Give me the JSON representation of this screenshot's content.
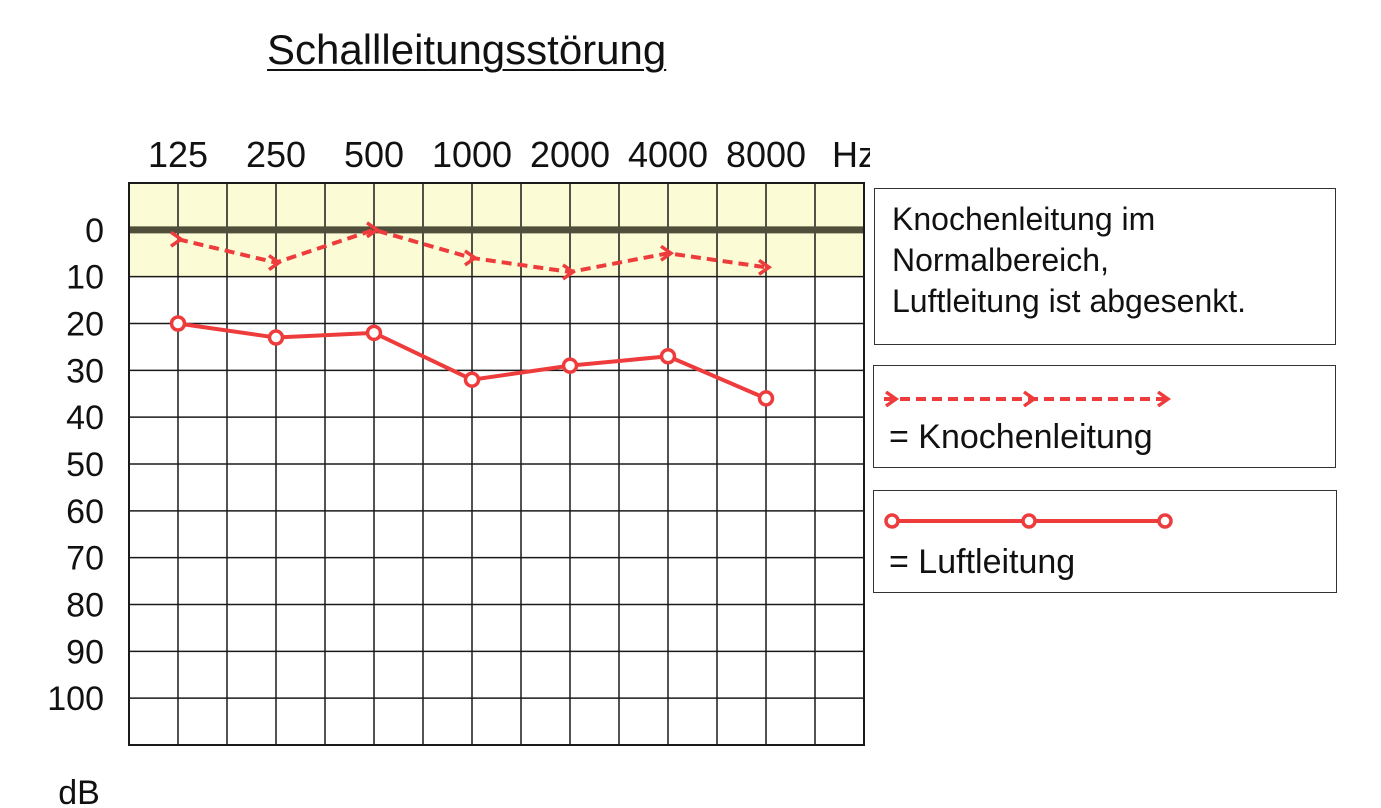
{
  "chart_data": {
    "type": "line",
    "title": "Schallleitungsstörung",
    "x_unit": "Hz",
    "y_unit": "dB",
    "categories": [
      "125",
      "250",
      "500",
      "1000",
      "2000",
      "4000",
      "8000"
    ],
    "y_ticks": [
      "0",
      "10",
      "20",
      "30",
      "40",
      "50",
      "60",
      "70",
      "80",
      "90",
      "100"
    ],
    "ylim": [
      -10,
      110
    ],
    "y_inverted": true,
    "normal_range": [
      -10,
      10
    ],
    "series": [
      {
        "name": "Knochenleitung",
        "style": "dashed-arrow",
        "values": [
          2,
          7,
          0,
          6,
          9,
          5,
          8
        ]
      },
      {
        "name": "Luftleitung",
        "style": "solid-circle",
        "values": [
          20,
          23,
          22,
          32,
          29,
          27,
          36
        ]
      }
    ]
  },
  "note": {
    "lines": [
      "Knochenleitung im",
      "Normalbereich,",
      "Luftleitung ist abgesenkt."
    ]
  },
  "legend": {
    "bone_label": "= Knochenleitung",
    "air_label": "= Luftleitung"
  },
  "colors": {
    "series": "#ee3c3c",
    "normal_band": "#fbfbd5",
    "zero_line": "#4f4f3c",
    "grid": "#1a1a1a"
  }
}
